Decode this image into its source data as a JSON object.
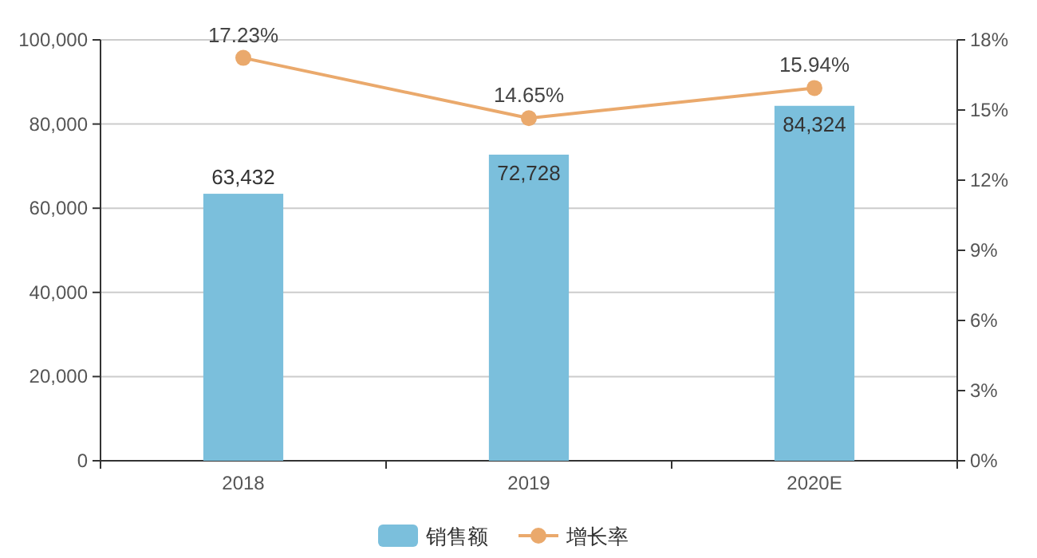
{
  "chart_data": {
    "type": "bar",
    "categories": [
      "2018",
      "2019",
      "2020E"
    ],
    "series": [
      {
        "name": "销售额",
        "color": "#7bbfdc",
        "values": [
          63432,
          72728,
          84324
        ],
        "value_labels": [
          "63,432",
          "72,728",
          "84,324"
        ]
      },
      {
        "name": "增长率",
        "type": "line",
        "axis": "y2",
        "color": "#eaa96c",
        "marker": "circle",
        "values": [
          17.23,
          14.65,
          15.94
        ],
        "value_labels": [
          "17.23%",
          "14.65%",
          "15.94%"
        ]
      }
    ],
    "ylim": [
      0,
      100000
    ],
    "yticks": [
      {
        "value": 0,
        "label": "0"
      },
      {
        "value": 20000,
        "label": "20,000"
      },
      {
        "value": 40000,
        "label": "40,000"
      },
      {
        "value": 60000,
        "label": "60,000"
      },
      {
        "value": 80000,
        "label": "80,000"
      },
      {
        "value": 100000,
        "label": "100,000"
      }
    ],
    "y2lim": [
      0,
      18
    ],
    "y2ticks": [
      {
        "value": 0,
        "label": "0%"
      },
      {
        "value": 3,
        "label": "3%"
      },
      {
        "value": 6,
        "label": "6%"
      },
      {
        "value": 9,
        "label": "9%"
      },
      {
        "value": 12,
        "label": "12%"
      },
      {
        "value": 15,
        "label": "15%"
      },
      {
        "value": 18,
        "label": "18%"
      }
    ],
    "grid": "y",
    "legend": "bottom"
  }
}
